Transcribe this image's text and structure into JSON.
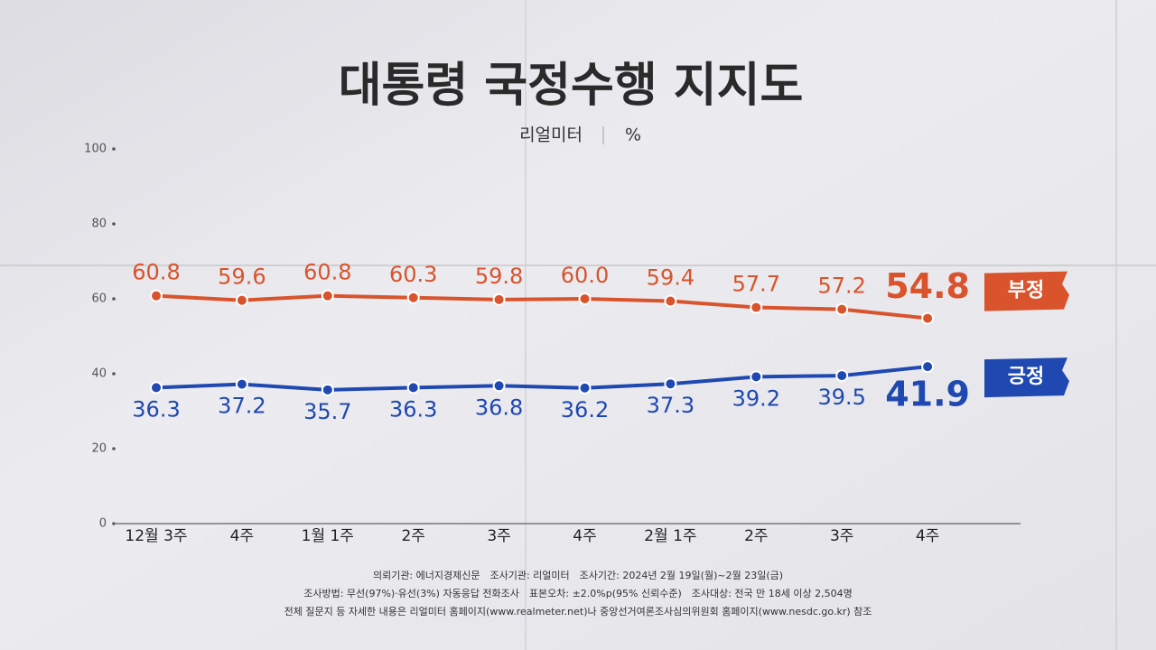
{
  "chart_data": {
    "type": "line",
    "title": "대통령 국정수행 지지도",
    "subtitle": "리얼미터",
    "unit": "%",
    "categories": [
      "12월 3주",
      "4주",
      "1월 1주",
      "2주",
      "3주",
      "4주",
      "2월 1주",
      "2주",
      "3주",
      "4주"
    ],
    "series": [
      {
        "name": "부정",
        "color": "#d9532c",
        "values": [
          60.8,
          59.6,
          60.8,
          60.3,
          59.8,
          60.0,
          59.4,
          57.7,
          57.2,
          54.8
        ],
        "value_labels": [
          "60.8",
          "59.6",
          "60.8",
          "60.3",
          "59.8",
          "60.0",
          "59.4",
          "57.7",
          "57.2",
          "54.8"
        ]
      },
      {
        "name": "긍정",
        "color": "#1f49b0",
        "values": [
          36.3,
          37.2,
          35.7,
          36.3,
          36.8,
          36.2,
          37.3,
          39.2,
          39.5,
          41.9
        ],
        "value_labels": [
          "36.3",
          "37.2",
          "35.7",
          "36.3",
          "36.8",
          "36.2",
          "37.3",
          "39.2",
          "39.5",
          "41.9"
        ]
      }
    ],
    "ylim": [
      0,
      100
    ],
    "yticks": [
      0,
      20,
      40,
      60,
      80,
      100
    ],
    "notes": [
      "의뢰기관: 에너지경제신문　조사기관: 리얼미터　조사기간: 2024년 2월 19일(월)~2월 23일(금)",
      "조사방법: 무선(97%)·유선(3%) 자동응답 전화조사　표본오차: ±2.0%p(95% 신뢰수준)　조사대상: 전국 만 18세 이상 2,504명",
      "전체 질문지 등 자세한 내용은 리얼미터 홈페이지(www.realmeter.net)나 중앙선거여론조사심의위원회 홈페이지(www.nesdc.go.kr) 참조"
    ]
  }
}
